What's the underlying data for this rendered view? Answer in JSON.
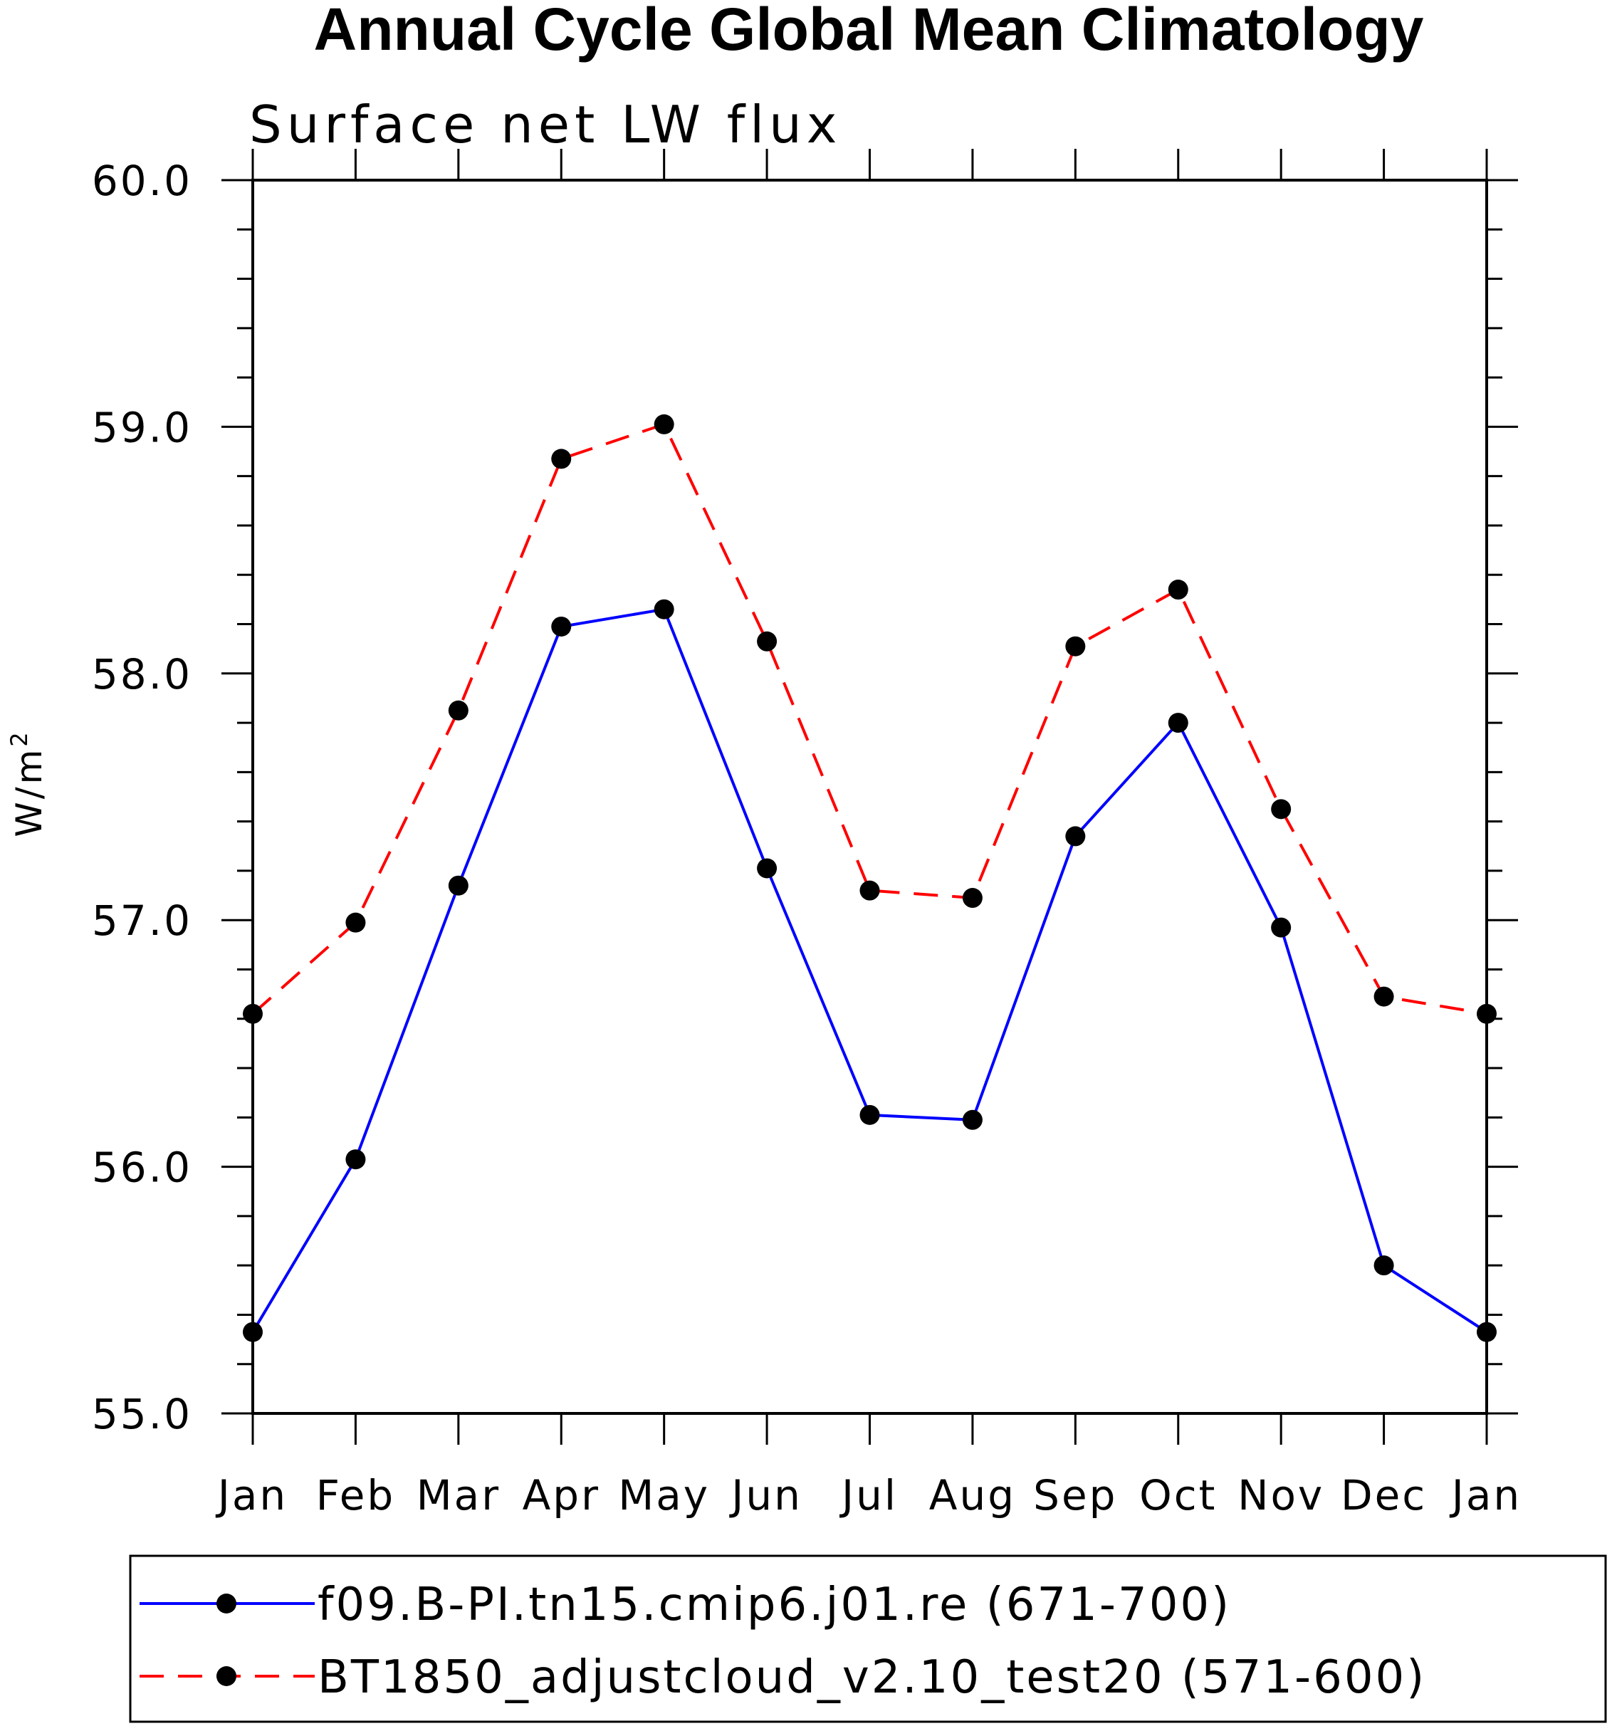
{
  "chart_data": {
    "type": "line",
    "title": "Annual Cycle Global Mean Climatology",
    "subtitle": "Surface net LW flux",
    "ylabel": "W/m",
    "ylabel_superscript": "2",
    "xlabel": "",
    "categories": [
      "Jan",
      "Feb",
      "Mar",
      "Apr",
      "May",
      "Jun",
      "Jul",
      "Aug",
      "Sep",
      "Oct",
      "Nov",
      "Dec",
      "Jan"
    ],
    "ylim": [
      55.0,
      60.0
    ],
    "y_tick_labels": [
      "55.0",
      "56.0",
      "57.0",
      "58.0",
      "59.0",
      "60.0"
    ],
    "y_major_step": 1.0,
    "y_minor_step": 0.2,
    "grid": false,
    "legend_position": "bottom",
    "series": [
      {
        "name": "f09.B-PI.tn15.cmip6.j01.re (671-700)",
        "color": "#0000ff",
        "dash": "solid",
        "values": [
          55.33,
          56.03,
          57.14,
          58.19,
          58.26,
          57.21,
          56.21,
          56.19,
          57.34,
          57.8,
          56.97,
          55.6,
          55.33
        ]
      },
      {
        "name": "BT1850_adjustcloud_v2.10_test20 (571-600)",
        "color": "#ff0000",
        "dash": "dashed",
        "values": [
          56.62,
          56.99,
          57.85,
          58.87,
          59.01,
          58.13,
          57.12,
          57.09,
          58.11,
          58.34,
          57.45,
          56.69,
          56.62
        ]
      }
    ],
    "marker_color": "#000000"
  }
}
